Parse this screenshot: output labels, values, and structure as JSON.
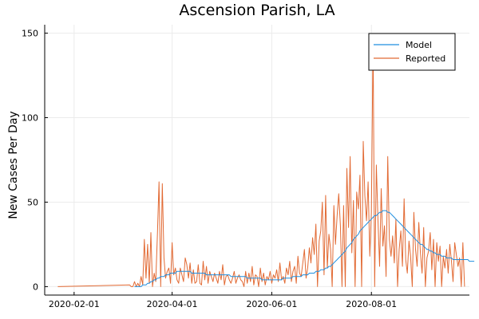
{
  "chart_data": {
    "type": "line",
    "title": "Ascension Parish, LA",
    "xlabel": "",
    "ylabel": "New Cases Per Day",
    "x_start": "2020-01-22",
    "x_ticks": [
      "2020-02-01",
      "2020-04-01",
      "2020-06-01",
      "2020-08-01"
    ],
    "y_ticks": [
      0,
      50,
      100,
      150
    ],
    "xlim": [
      "2020-01-14",
      "2020-09-30"
    ],
    "ylim": [
      -5,
      155
    ],
    "grid": true,
    "legend_position": "top-right",
    "colors": {
      "Model": "#1f8fe0",
      "Reported": "#e26a34"
    },
    "series": [
      {
        "name": "Model",
        "start": "2020-03-09",
        "values": [
          0,
          0,
          0,
          0,
          0,
          1,
          1,
          1,
          2,
          2,
          3,
          3,
          4,
          4,
          5,
          5,
          6,
          6,
          6,
          7,
          7,
          7,
          8,
          8,
          8,
          8,
          9,
          9,
          9,
          9,
          9,
          9,
          9,
          9,
          9,
          8,
          8,
          8,
          8,
          8,
          8,
          8,
          8,
          8,
          7,
          7,
          7,
          7,
          7,
          7,
          7,
          7,
          7,
          7,
          7,
          7,
          7,
          7,
          7,
          6,
          6,
          6,
          6,
          6,
          6,
          6,
          6,
          6,
          6,
          5,
          5,
          5,
          5,
          5,
          5,
          5,
          5,
          5,
          4,
          4,
          4,
          4,
          4,
          4,
          4,
          4,
          4,
          4,
          4,
          4,
          4,
          5,
          5,
          5,
          5,
          5,
          5,
          6,
          6,
          6,
          6,
          6,
          6,
          7,
          7,
          7,
          7,
          8,
          8,
          8,
          8,
          9,
          9,
          9,
          10,
          10,
          10,
          11,
          11,
          12,
          12,
          13,
          14,
          15,
          16,
          17,
          18,
          19,
          20,
          21,
          23,
          24,
          25,
          26,
          28,
          29,
          30,
          31,
          33,
          34,
          35,
          36,
          37,
          38,
          39,
          40,
          41,
          42,
          42,
          43,
          44,
          44,
          45,
          45,
          45,
          44,
          44,
          43,
          42,
          41,
          40,
          39,
          38,
          37,
          36,
          35,
          34,
          33,
          32,
          31,
          30,
          29,
          28,
          27,
          26,
          25,
          25,
          24,
          23,
          22,
          22,
          21,
          21,
          20,
          20,
          19,
          19,
          19,
          18,
          18,
          18,
          17,
          17,
          17,
          17,
          16,
          16,
          16,
          16,
          16,
          16,
          16,
          16,
          16,
          16,
          15,
          15,
          15,
          15
        ]
      },
      {
        "name": "Reported",
        "start": "2020-03-06",
        "values": [
          1,
          0,
          0,
          3,
          0,
          2,
          0,
          6,
          1,
          28,
          5,
          25,
          2,
          32,
          0,
          8,
          3,
          31,
          62,
          0,
          61,
          17,
          5,
          9,
          11,
          2,
          26,
          7,
          11,
          4,
          2,
          11,
          7,
          3,
          17,
          13,
          5,
          14,
          2,
          10,
          2,
          3,
          13,
          2,
          1,
          15,
          4,
          12,
          2,
          9,
          6,
          3,
          8,
          5,
          2,
          9,
          4,
          13,
          1,
          6,
          7,
          4,
          2,
          5,
          9,
          2,
          5,
          7,
          4,
          3,
          0,
          9,
          2,
          8,
          3,
          12,
          1,
          7,
          6,
          0,
          11,
          3,
          8,
          1,
          6,
          4,
          9,
          2,
          7,
          5,
          10,
          3,
          14,
          4,
          6,
          2,
          11,
          7,
          15,
          3,
          9,
          12,
          2,
          18,
          8,
          6,
          14,
          22,
          5,
          11,
          23,
          14,
          29,
          19,
          37,
          0,
          27,
          33,
          50,
          7,
          54,
          11,
          31,
          22,
          0,
          48,
          25,
          42,
          55,
          36,
          0,
          48,
          0,
          70,
          35,
          77,
          20,
          51,
          0,
          56,
          46,
          66,
          0,
          86,
          54,
          39,
          62,
          18,
          44,
          148,
          0,
          72,
          40,
          12,
          58,
          24,
          36,
          6,
          77,
          28,
          18,
          30,
          14,
          40,
          0,
          22,
          33,
          12,
          52,
          16,
          8,
          27,
          18,
          0,
          44,
          22,
          12,
          38,
          20,
          8,
          35,
          0,
          17,
          21,
          32,
          10,
          28,
          0,
          26,
          15,
          24,
          0,
          18,
          11,
          22,
          8,
          25,
          15,
          3,
          26,
          19,
          12,
          17,
          0,
          26,
          0
        ]
      }
    ]
  }
}
